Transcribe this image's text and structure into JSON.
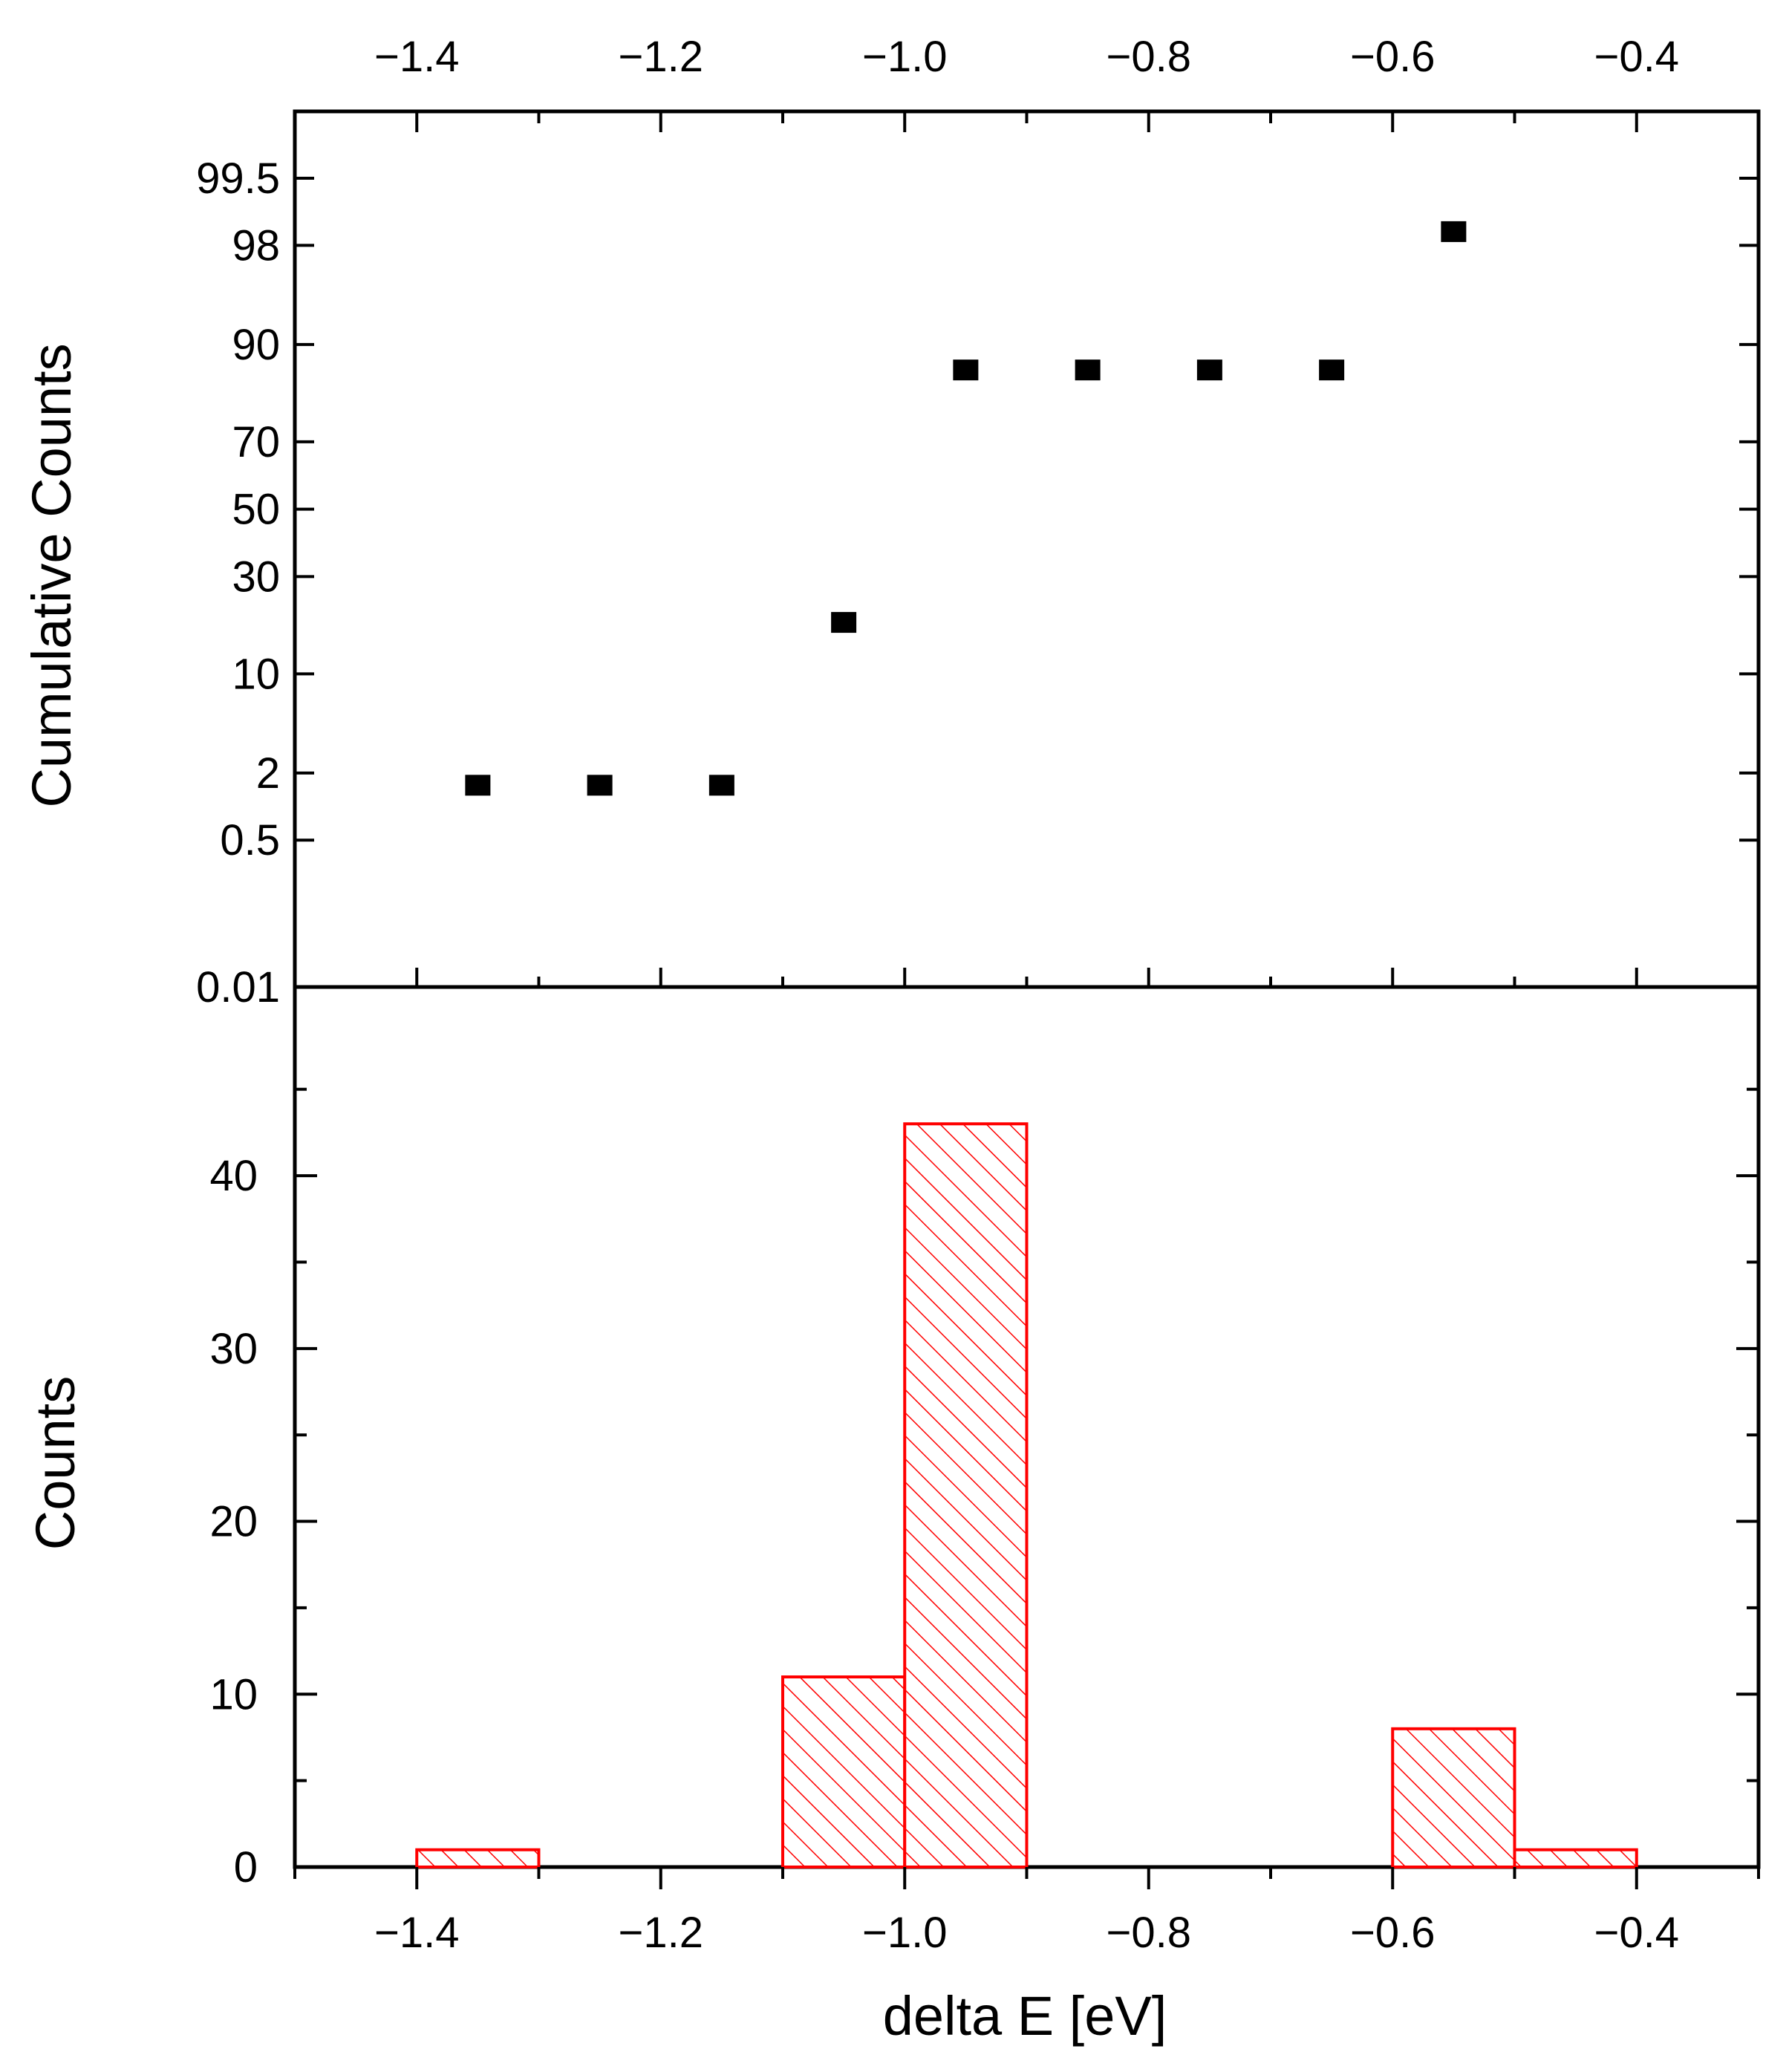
{
  "chart_data": [
    {
      "type": "scatter",
      "panel": "top",
      "xlabel": "",
      "ylabel": "Cumulative Counts",
      "xlim": [
        -1.5,
        -0.3
      ],
      "y_scale": "probability",
      "xticks": [
        -1.4,
        -1.2,
        -1.0,
        -0.8,
        -0.6,
        -0.4
      ],
      "xtick_labels": [
        "−1.4",
        "−1.2",
        "−1.0",
        "−0.8",
        "−0.6",
        "−0.4"
      ],
      "yticks": [
        0.01,
        0.5,
        2,
        10,
        30,
        50,
        70,
        90,
        98,
        99.5
      ],
      "ytick_labels": [
        "0.01",
        "0.5",
        "2",
        "10",
        "30",
        "50",
        "70",
        "90",
        "98",
        "99.5"
      ],
      "marker": "square",
      "color": "#000000",
      "x": [
        -1.35,
        -1.25,
        -1.15,
        -1.05,
        -0.95,
        -0.85,
        -0.75,
        -0.65,
        -0.55
      ],
      "y": [
        1.56,
        1.56,
        1.56,
        18.75,
        85.94,
        85.94,
        85.94,
        85.94,
        98.44
      ]
    },
    {
      "type": "bar",
      "panel": "bottom",
      "xlabel": "delta E [eV]",
      "ylabel": "Counts",
      "xlim": [
        -1.5,
        -0.3
      ],
      "ylim": [
        0,
        45
      ],
      "xticks": [
        -1.4,
        -1.2,
        -1.0,
        -0.8,
        -0.6,
        -0.4
      ],
      "xtick_labels": [
        "−1.4",
        "−1.2",
        "−1.0",
        "−0.8",
        "−0.6",
        "−0.4"
      ],
      "yticks": [
        0,
        10,
        20,
        30,
        40
      ],
      "ytick_labels": [
        "0",
        "10",
        "20",
        "30",
        "40"
      ],
      "hatch": "diagonal",
      "color": "#ff0000",
      "bins": [
        {
          "x0": -1.4,
          "x1": -1.3,
          "value": 1
        },
        {
          "x0": -1.1,
          "x1": -1.0,
          "value": 11
        },
        {
          "x0": -1.0,
          "x1": -0.9,
          "value": 43
        },
        {
          "x0": -0.6,
          "x1": -0.5,
          "value": 8
        },
        {
          "x0": -0.5,
          "x1": -0.4,
          "value": 1
        }
      ]
    }
  ]
}
